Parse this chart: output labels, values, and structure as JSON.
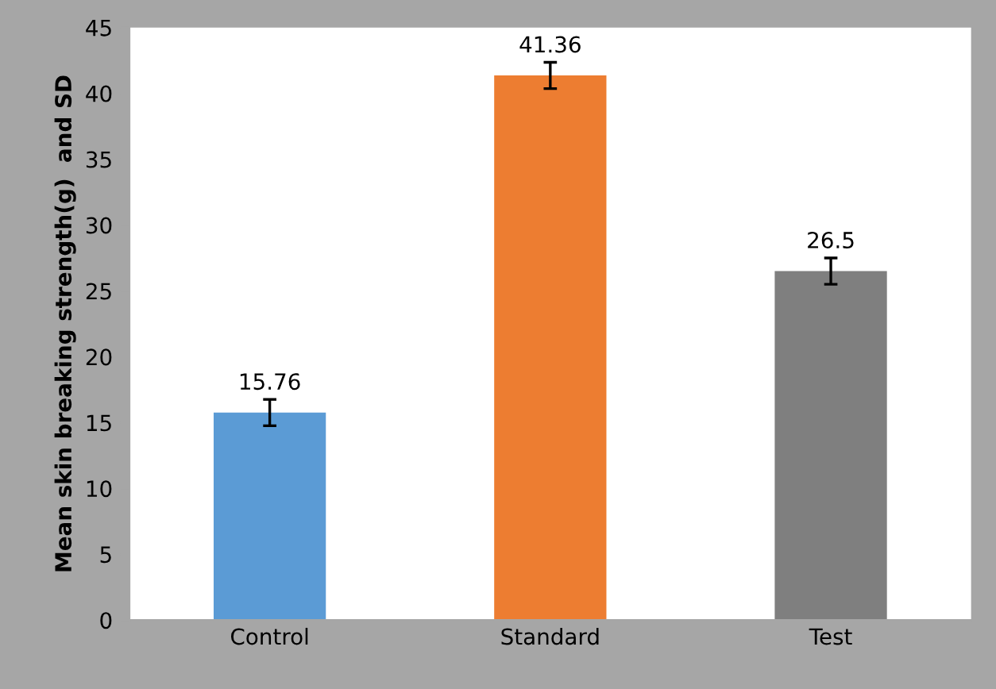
{
  "chart_data": {
    "type": "bar",
    "ylabel": "Mean skin breaking strength(g)  and SD",
    "categories": [
      "Control",
      "Standard",
      "Test"
    ],
    "values": [
      15.76,
      41.36,
      26.5
    ],
    "colors": [
      "#5b9bd5",
      "#ed7d31",
      "#7f7f7f"
    ],
    "errors": [
      1.0,
      1.0,
      1.0
    ],
    "data_labels": true,
    "ylim": [
      0,
      45
    ],
    "yticks": [
      0,
      5,
      10,
      15,
      20,
      25,
      30,
      35,
      40,
      45
    ],
    "grid": false
  }
}
